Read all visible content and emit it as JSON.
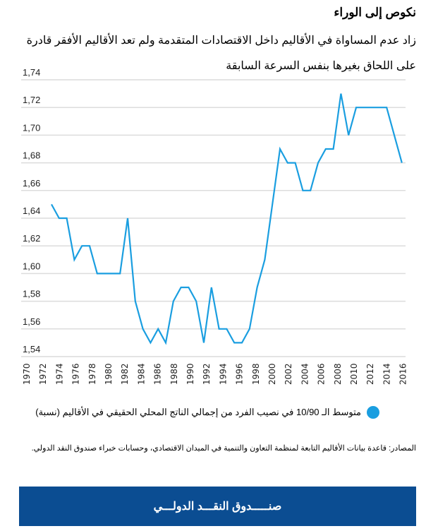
{
  "header": {
    "title": "نكوص إلى الوراء",
    "subtitle": "زاد عدم المساواة في الأقاليم داخل الاقتصادات المتقدمة ولم تعد الأقاليم الأفقر قادرة على اللحاق بغيرها بنفس السرعة السابقة"
  },
  "chart_data": {
    "type": "line",
    "title": "",
    "xlabel": "",
    "ylabel": "",
    "ylim": [
      1.54,
      1.74
    ],
    "yticks": [
      "1,54",
      "1,56",
      "1,58",
      "1,60",
      "1,62",
      "1,64",
      "1,66",
      "1,68",
      "1,70",
      "1,72",
      "1,74"
    ],
    "xticks": [
      "1970",
      "1972",
      "1974",
      "1976",
      "1978",
      "1980",
      "1982",
      "1984",
      "1986",
      "1988",
      "1990",
      "1992",
      "1994",
      "1996",
      "1998",
      "2000",
      "2002",
      "2004",
      "2006",
      "2008",
      "2010",
      "2012",
      "2014",
      "2016"
    ],
    "grid": true,
    "legend_position": "bottom",
    "color": "#1a9ee0",
    "series": [
      {
        "name": "متوسط الـ 10/90 في نصيب الفرد من إجمالي الناتج المحلي الحقيقي في الأقاليم (نسبة)",
        "values": [
          1.65,
          1.64,
          1.64,
          1.61,
          1.62,
          1.62,
          1.6,
          1.6,
          1.6,
          1.6,
          1.64,
          1.58,
          1.56,
          1.55,
          1.56,
          1.55,
          1.58,
          1.59,
          1.59,
          1.58,
          1.55,
          1.59,
          1.56,
          1.56,
          1.55,
          1.55,
          1.56,
          1.59,
          1.61,
          1.65,
          1.69,
          1.68,
          1.68,
          1.66,
          1.66,
          1.68,
          1.69,
          1.69,
          1.73,
          1.7,
          1.72,
          1.72,
          1.72,
          1.72,
          1.72,
          1.7,
          1.68
        ]
      }
    ]
  },
  "legend": {
    "label": "متوسط الـ 10/90 في نصيب الفرد من إجمالي الناتج المحلي الحقيقي في الأقاليم (نسبة)"
  },
  "source": "المصادر: قاعدة بيانات الأقاليم التابعة لمنظمة التعاون والتنمية في الميدان الاقتصادي، وحسابات خبراء صندوق النقد الدولي.",
  "footer": {
    "label": "صنـــــدوق النقـــد الدولـــي"
  }
}
